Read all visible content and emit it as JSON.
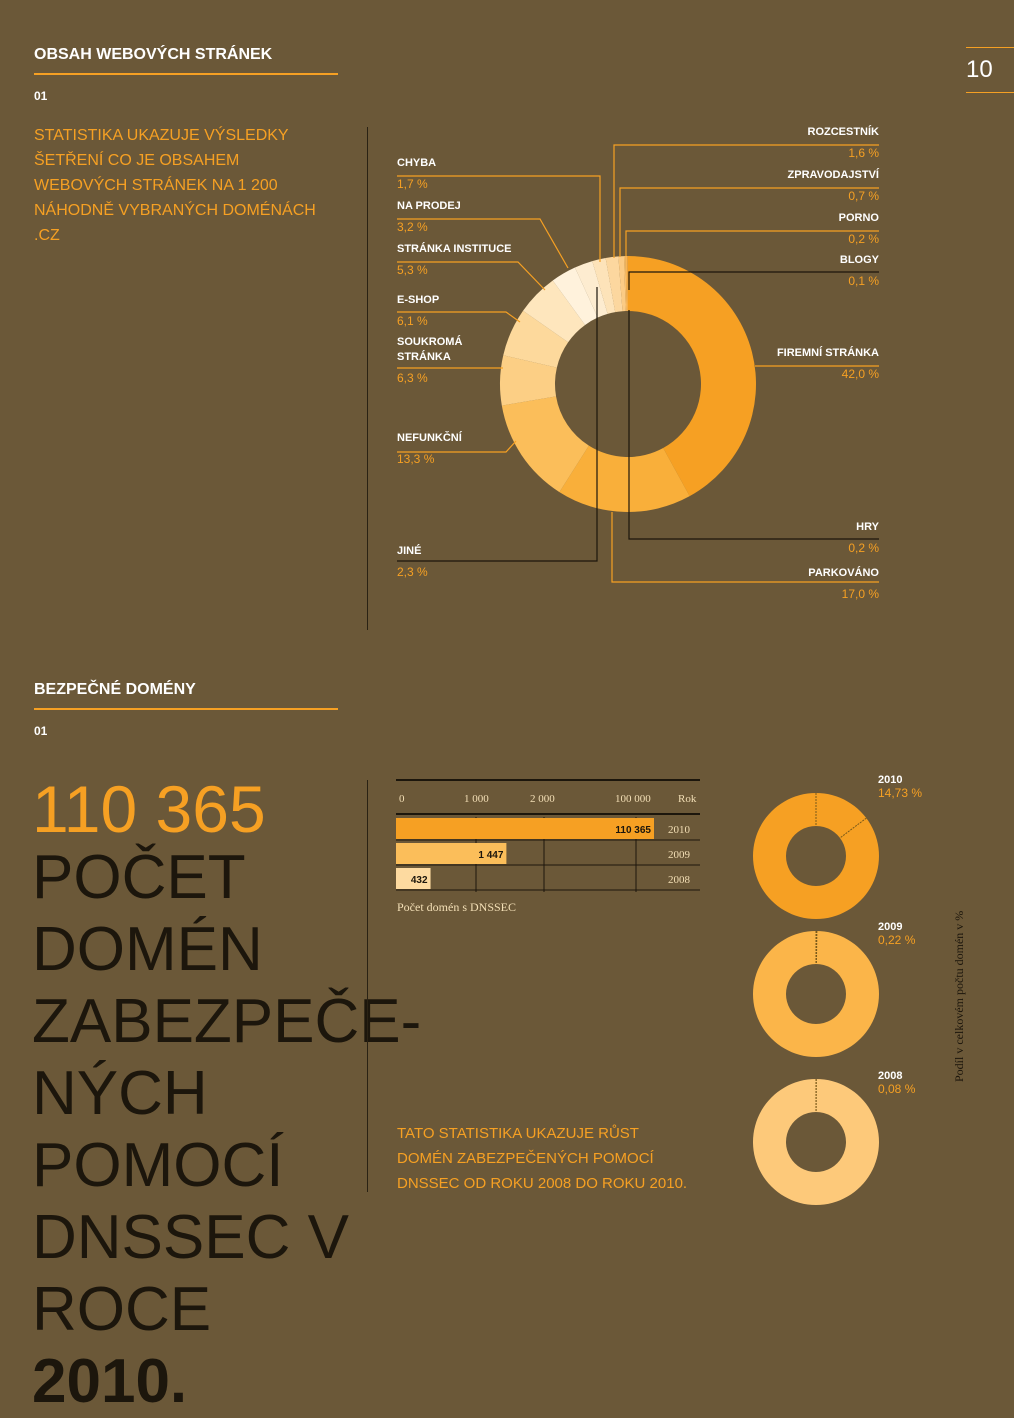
{
  "page_number": "10",
  "section1": {
    "title": "OBSAH WEBOVÝCH STRÁNEK",
    "index": "01",
    "intro": "STATISTIKA UKAZUJE VÝSLEDKY ŠETŘENÍ CO JE OBSAHEM WEBOVÝCH STRÁNEK NA 1 200 NÁHODNĚ VYBRANÝCH DOMÉNÁCH .CZ"
  },
  "section2": {
    "title": "BEZPEČNÉ DOMÉNY",
    "index": "01",
    "big_number": "110 365",
    "big_text": "POČET DOMÉN ZABEZPEČE- NÝCH POMOCÍ DNSSEC V ROCE",
    "big_year": "2010.",
    "footnote": "TATO STATISTIKA UKAZUJE RŮST DOMÉN ZABEZPEČENÝCH POMOCÍ DNSSEC OD ROKU 2008 DO ROKU 2010."
  },
  "colors": {
    "background": "#6b5838",
    "accent": "#f6a023",
    "dark": "#1c160c"
  },
  "chart_data": [
    {
      "type": "pie",
      "title": "",
      "slices": [
        {
          "label": "FIREMNÍ STRÁNKA",
          "value": 42.0,
          "value_text": "42,0 %",
          "color": "#f6a023"
        },
        {
          "label": "PARKOVÁNO",
          "value": 17.0,
          "value_text": "17,0 %",
          "color": "#f9af3a"
        },
        {
          "label": "NEFUNKČNÍ",
          "value": 13.3,
          "value_text": "13,3 %",
          "color": "#fbbe5a"
        },
        {
          "label": "SOUKROMÁ STRÁNKA",
          "value": 6.3,
          "value_text": "6,3 %",
          "color": "#fccf85"
        },
        {
          "label": "E-SHOP",
          "value": 6.1,
          "value_text": "6,1 %",
          "color": "#fdd99c"
        },
        {
          "label": "STRÁNKA INSTITUCE",
          "value": 5.3,
          "value_text": "5,3 %",
          "color": "#fee6bd"
        },
        {
          "label": "NA PRODEJ",
          "value": 3.2,
          "value_text": "3,2 %",
          "color": "#fff2dc"
        },
        {
          "label": "JINÉ",
          "value": 2.3,
          "value_text": "2,3 %",
          "color": "#fdecd0"
        },
        {
          "label": "CHYBA",
          "value": 1.7,
          "value_text": "1,7 %",
          "color": "#fde3b9"
        },
        {
          "label": "ROZCESTNÍK",
          "value": 1.6,
          "value_text": "1,6 %",
          "color": "#fcd79f"
        },
        {
          "label": "ZPRAVODAJSTVÍ",
          "value": 0.7,
          "value_text": "0,7 %",
          "color": "#fbcb85"
        },
        {
          "label": "PORNO",
          "value": 0.2,
          "value_text": "0,2 %",
          "color": "#fac06c"
        },
        {
          "label": "HRY",
          "value": 0.2,
          "value_text": "0,2 %",
          "color": "#f9b555"
        },
        {
          "label": "BLOGY",
          "value": 0.1,
          "value_text": "0,1 %",
          "color": "#f8ab42"
        }
      ]
    },
    {
      "type": "bar",
      "xlabel": "Počet domén s DNSSEC",
      "axis_labels": [
        "0",
        "1 000",
        "2 000",
        "100 000",
        "Rok"
      ],
      "categories": [
        "2010",
        "2009",
        "2008"
      ],
      "values": [
        110365,
        1447,
        432
      ],
      "value_text": [
        "110 365",
        "1 447",
        "432"
      ],
      "colors": [
        "#f6a023",
        "#fbbe5a",
        "#fddaa0"
      ]
    },
    {
      "type": "pie",
      "ylabel": "Podíl v celkovém počtu domén v %",
      "rings": [
        {
          "year": "2010",
          "value": 14.73,
          "value_text": "14,73 %",
          "color": "#f6a023"
        },
        {
          "year": "2009",
          "value": 0.22,
          "value_text": "0,22 %",
          "color": "#fbb549"
        },
        {
          "year": "2008",
          "value": 0.08,
          "value_text": "0,08 %",
          "color": "#fdc97a"
        }
      ]
    }
  ]
}
